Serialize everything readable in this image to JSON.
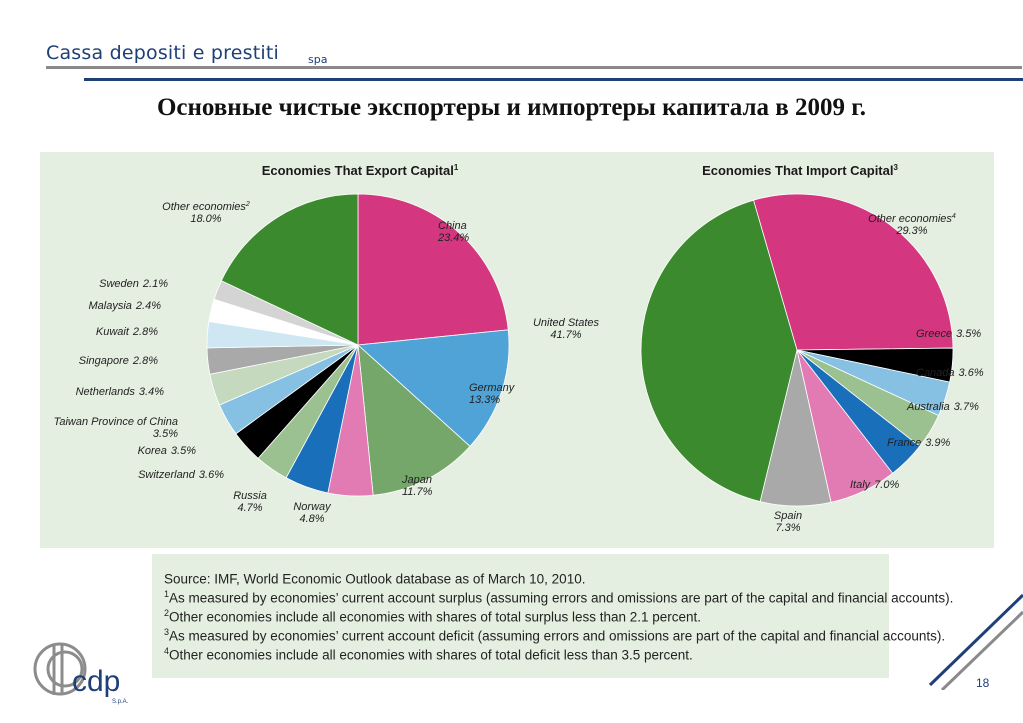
{
  "header": {
    "brand": "Cassa depositi e prestiti",
    "brand_suffix": "spa",
    "slide_title": "Основные чистые экспортеры и импортеры капитала в 2009 г."
  },
  "chart_data": [
    {
      "type": "pie",
      "title": "Economies That Export Capital",
      "title_footnote": "1",
      "slices": [
        {
          "label": "China",
          "value": 23.4,
          "value_label": "23.4%",
          "color": "#d4367f"
        },
        {
          "label": "Germany",
          "value": 13.3,
          "value_label": "13.3%",
          "color": "#4fa3d7"
        },
        {
          "label": "Japan",
          "value": 11.7,
          "value_label": "11.7%",
          "color": "#76a76a"
        },
        {
          "label": "Norway",
          "value": 4.8,
          "value_label": "4.8%",
          "color": "#e27bb4"
        },
        {
          "label": "Russia",
          "value": 4.7,
          "value_label": "4.7%",
          "color": "#1a6fbb"
        },
        {
          "label": "Switzerland",
          "value": 3.6,
          "value_label": "3.6%",
          "color": "#9cc190"
        },
        {
          "label": "Korea",
          "value": 3.5,
          "value_label": "3.5%",
          "color": "#000000"
        },
        {
          "label": "Taiwan Province of China",
          "value": 3.5,
          "value_label": "3.5%",
          "color": "#86c1e3"
        },
        {
          "label": "Netherlands",
          "value": 3.4,
          "value_label": "3.4%",
          "color": "#c4d9bd"
        },
        {
          "label": "Singapore",
          "value": 2.8,
          "value_label": "2.8%",
          "color": "#a9a9a9"
        },
        {
          "label": "Kuwait",
          "value": 2.8,
          "value_label": "2.8%",
          "color": "#cfe6f3"
        },
        {
          "label": "Malaysia",
          "value": 2.4,
          "value_label": "2.4%",
          "color": "#ffffff"
        },
        {
          "label": "Sweden",
          "value": 2.1,
          "value_label": "2.1%",
          "color": "#d4d4d4"
        },
        {
          "label": "Other economies",
          "label_footnote": "2",
          "value": 18.0,
          "value_label": "18.0%",
          "color": "#3b8a2e"
        }
      ]
    },
    {
      "type": "pie",
      "title": "Economies That Import Capital",
      "title_footnote": "3",
      "slices": [
        {
          "label": "Other economies",
          "label_footnote": "4",
          "value": 29.3,
          "value_label": "29.3%",
          "color": "#d4367f"
        },
        {
          "label": "Greece",
          "value": 3.5,
          "value_label": "3.5%",
          "color": "#000000"
        },
        {
          "label": "Canada",
          "value": 3.6,
          "value_label": "3.6%",
          "color": "#86c1e3"
        },
        {
          "label": "Australia",
          "value": 3.7,
          "value_label": "3.7%",
          "color": "#9cc190"
        },
        {
          "label": "France",
          "value": 3.9,
          "value_label": "3.9%",
          "color": "#1a6fbb"
        },
        {
          "label": "Italy",
          "value": 7.0,
          "value_label": "7.0%",
          "color": "#e27bb4"
        },
        {
          "label": "Spain",
          "value": 7.3,
          "value_label": "7.3%",
          "color": "#a9a9a9"
        },
        {
          "label": "United States",
          "value": 41.7,
          "value_label": "41.7%",
          "color": "#3b8a2e"
        }
      ]
    }
  ],
  "notes": [
    {
      "mark": "",
      "text": "Source: IMF, World Economic Outlook database as of March 10, 2010."
    },
    {
      "mark": "1",
      "text": "As measured by economies’ current account surplus (assuming errors and omissions are part of the capital and financial accounts)."
    },
    {
      "mark": "2",
      "text": "Other economies include all economies with shares of total surplus less than 2.1 percent."
    },
    {
      "mark": "3",
      "text": "As measured by economies’ current account deficit (assuming errors and omissions are part of the capital and financial accounts)."
    },
    {
      "mark": "4",
      "text": "Other economies include all economies with shares of total deficit less than 3.5 percent."
    }
  ],
  "footer": {
    "logo_text": "cdp",
    "logo_subtext": "S.p.A.",
    "page_number": "18"
  }
}
